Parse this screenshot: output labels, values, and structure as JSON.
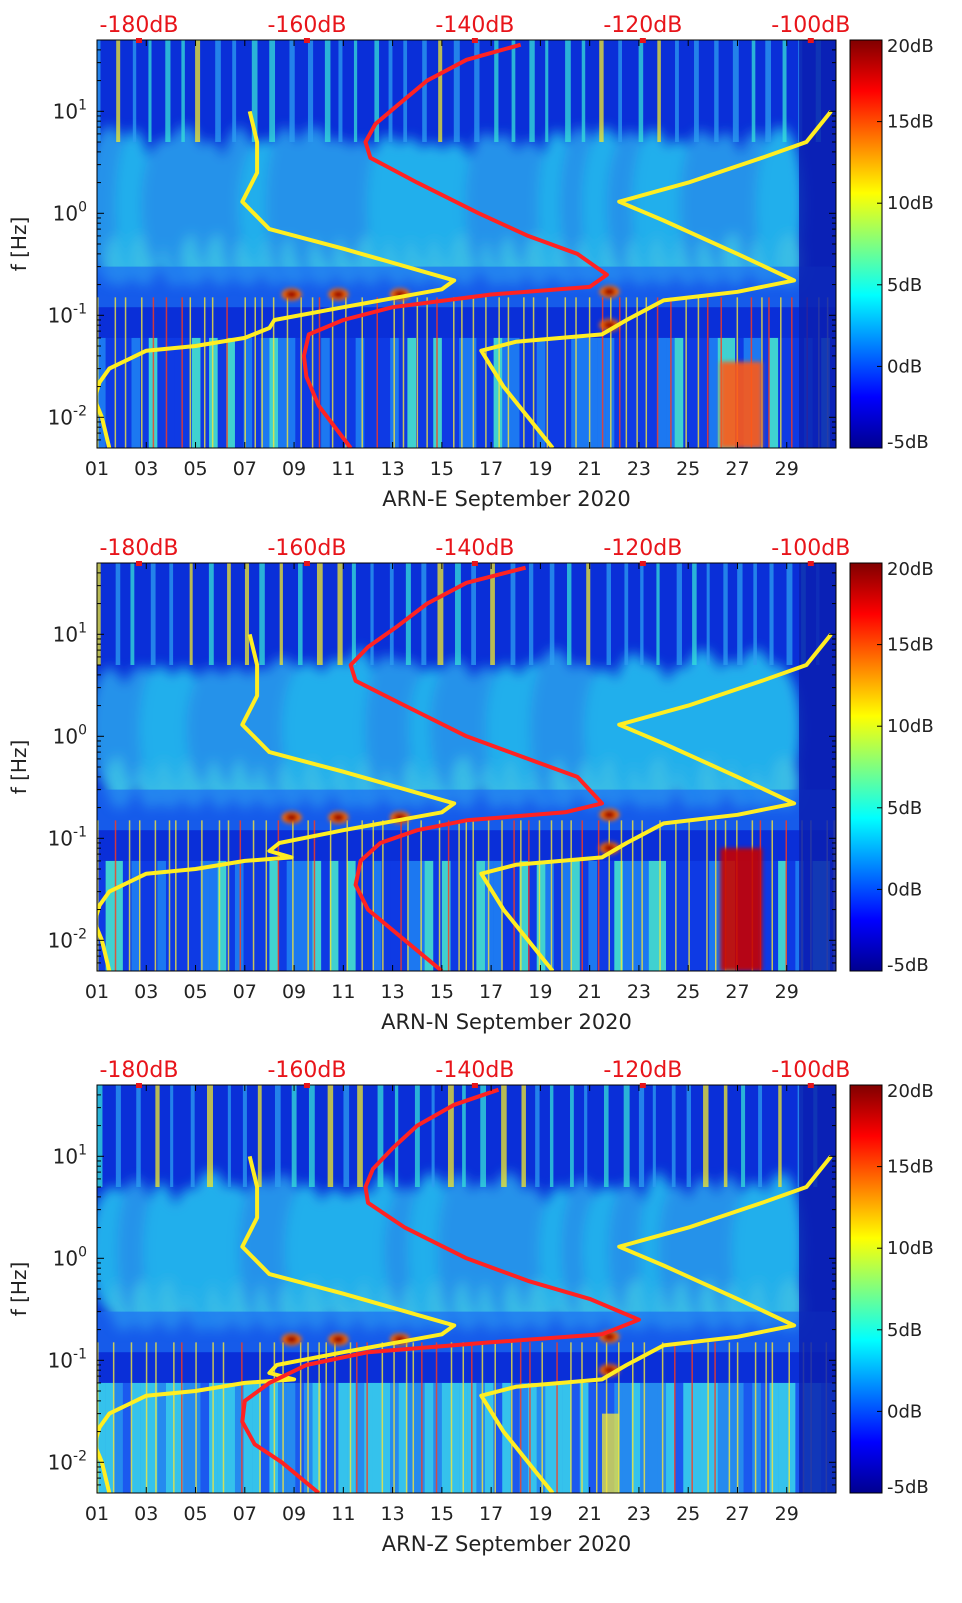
{
  "figure": {
    "panels": [
      {
        "xlabel": "ARN-E September 2020"
      },
      {
        "xlabel": "ARN-N September 2020"
      },
      {
        "xlabel": "ARN-Z September 2020"
      }
    ]
  },
  "chart_data": [
    {
      "type": "heatmap",
      "xlabel": "ARN-E September 2020",
      "ylabel": "f [Hz]",
      "xlim": [
        1,
        31
      ],
      "ylim": [
        0.005,
        50
      ],
      "yscale": "log",
      "x_ticks": [
        "01",
        "03",
        "05",
        "07",
        "09",
        "11",
        "13",
        "15",
        "17",
        "19",
        "21",
        "23",
        "25",
        "27",
        "29"
      ],
      "y_ticks": [
        "10^-2",
        "10^-1",
        "10^0",
        "10^1"
      ],
      "top_axis_ticks": [
        "-180dB",
        "-160dB",
        "-140dB",
        "-120dB",
        "-100dB"
      ],
      "top_axis_range_db": [
        -185,
        -97
      ],
      "colorbar": {
        "range_db": [
          -5,
          20
        ],
        "ticks": [
          "20dB",
          "15dB",
          "10dB",
          "5dB",
          "0dB",
          "-5dB"
        ],
        "colormap": "jet"
      },
      "series": [
        {
          "color": "#ffee22",
          "points": [
            [
              7.2,
              10
            ],
            [
              7.5,
              5
            ],
            [
              7.5,
              2.5
            ],
            [
              6.9,
              1.3
            ],
            [
              8.0,
              0.7
            ],
            [
              11,
              0.45
            ],
            [
              15.5,
              0.22
            ],
            [
              15,
              0.18
            ],
            [
              11,
              0.12
            ],
            [
              8.2,
              0.09
            ],
            [
              8,
              0.075
            ],
            [
              7.0,
              0.06
            ],
            [
              5,
              0.05
            ],
            [
              3,
              0.045
            ],
            [
              1.5,
              0.03
            ],
            [
              1.1,
              0.022
            ],
            [
              0.9,
              0.015
            ],
            [
              1.2,
              0.01
            ],
            [
              1.5,
              0.005
            ]
          ]
        },
        {
          "color": "#ff2222",
          "points": [
            [
              18.2,
              45
            ],
            [
              16,
              32
            ],
            [
              14.4,
              20
            ],
            [
              13.3,
              12
            ],
            [
              12.3,
              7.5
            ],
            [
              11.9,
              5
            ],
            [
              12.1,
              3.5
            ],
            [
              14,
              2
            ],
            [
              16.5,
              1
            ],
            [
              18.5,
              0.6
            ],
            [
              20.5,
              0.4
            ],
            [
              21.7,
              0.25
            ],
            [
              21,
              0.19
            ],
            [
              17,
              0.16
            ],
            [
              13,
              0.12
            ],
            [
              11,
              0.09
            ],
            [
              9.6,
              0.065
            ],
            [
              9.4,
              0.04
            ],
            [
              9.5,
              0.025
            ],
            [
              10,
              0.013
            ],
            [
              11.3,
              0.005
            ]
          ]
        },
        {
          "color": "#ffee22",
          "points": [
            [
              30.8,
              10
            ],
            [
              29.8,
              5
            ],
            [
              28,
              3.5
            ],
            [
              25,
              2
            ],
            [
              22.2,
              1.3
            ],
            [
              24,
              0.85
            ],
            [
              27,
              0.4
            ],
            [
              29.3,
              0.22
            ],
            [
              27,
              0.17
            ],
            [
              24,
              0.14
            ],
            [
              22.5,
              0.09
            ],
            [
              21.5,
              0.065
            ],
            [
              18,
              0.055
            ],
            [
              16.6,
              0.045
            ],
            [
              17.5,
              0.02
            ],
            [
              18.5,
              0.01
            ],
            [
              19.5,
              0.005
            ]
          ]
        }
      ]
    },
    {
      "type": "heatmap",
      "xlabel": "ARN-N September 2020",
      "ylabel": "f [Hz]",
      "xlim": [
        1,
        31
      ],
      "ylim": [
        0.005,
        50
      ],
      "yscale": "log",
      "x_ticks": [
        "01",
        "03",
        "05",
        "07",
        "09",
        "11",
        "13",
        "15",
        "17",
        "19",
        "21",
        "23",
        "25",
        "27",
        "29"
      ],
      "y_ticks": [
        "10^-2",
        "10^-1",
        "10^0",
        "10^1"
      ],
      "top_axis_ticks": [
        "-180dB",
        "-160dB",
        "-140dB",
        "-120dB",
        "-100dB"
      ],
      "top_axis_range_db": [
        -185,
        -97
      ],
      "colorbar": {
        "range_db": [
          -5,
          20
        ],
        "ticks": [
          "20dB",
          "15dB",
          "10dB",
          "5dB",
          "0dB",
          "-5dB"
        ],
        "colormap": "jet"
      },
      "series": [
        {
          "color": "#ffee22",
          "points": [
            [
              7.2,
              10
            ],
            [
              7.5,
              5
            ],
            [
              7.5,
              2.5
            ],
            [
              6.9,
              1.3
            ],
            [
              8.0,
              0.7
            ],
            [
              11,
              0.45
            ],
            [
              15.5,
              0.22
            ],
            [
              15,
              0.18
            ],
            [
              11,
              0.12
            ],
            [
              8.4,
              0.09
            ],
            [
              8,
              0.075
            ],
            [
              8.9,
              0.065
            ],
            [
              7,
              0.06
            ],
            [
              5,
              0.05
            ],
            [
              3,
              0.045
            ],
            [
              1.5,
              0.03
            ],
            [
              1.1,
              0.022
            ],
            [
              0.9,
              0.015
            ],
            [
              1.2,
              0.01
            ],
            [
              1.5,
              0.005
            ]
          ]
        },
        {
          "color": "#ff2222",
          "points": [
            [
              18.4,
              45
            ],
            [
              16,
              32
            ],
            [
              14.4,
              20
            ],
            [
              13.2,
              12
            ],
            [
              12,
              7.5
            ],
            [
              11.3,
              5
            ],
            [
              11.5,
              3.5
            ],
            [
              13.5,
              2
            ],
            [
              16,
              1
            ],
            [
              18.5,
              0.6
            ],
            [
              20.5,
              0.4
            ],
            [
              21.5,
              0.22
            ],
            [
              20,
              0.18
            ],
            [
              16,
              0.15
            ],
            [
              14,
              0.12
            ],
            [
              12.5,
              0.09
            ],
            [
              11.7,
              0.06
            ],
            [
              11.5,
              0.035
            ],
            [
              12,
              0.02
            ],
            [
              13.5,
              0.01
            ],
            [
              15,
              0.005
            ]
          ]
        },
        {
          "color": "#ffee22",
          "points": [
            [
              30.8,
              10
            ],
            [
              29.8,
              5
            ],
            [
              28,
              3.5
            ],
            [
              25,
              2
            ],
            [
              22.2,
              1.3
            ],
            [
              24,
              0.85
            ],
            [
              27,
              0.4
            ],
            [
              29.3,
              0.22
            ],
            [
              27,
              0.17
            ],
            [
              24,
              0.14
            ],
            [
              22.5,
              0.09
            ],
            [
              21.5,
              0.065
            ],
            [
              18,
              0.055
            ],
            [
              16.6,
              0.045
            ],
            [
              17.5,
              0.02
            ],
            [
              18.5,
              0.01
            ],
            [
              19.5,
              0.005
            ]
          ]
        }
      ]
    },
    {
      "type": "heatmap",
      "xlabel": "ARN-Z September 2020",
      "ylabel": "f [Hz]",
      "xlim": [
        1,
        31
      ],
      "ylim": [
        0.005,
        50
      ],
      "yscale": "log",
      "x_ticks": [
        "01",
        "03",
        "05",
        "07",
        "09",
        "11",
        "13",
        "15",
        "17",
        "19",
        "21",
        "23",
        "25",
        "27",
        "29"
      ],
      "y_ticks": [
        "10^-2",
        "10^-1",
        "10^0",
        "10^1"
      ],
      "top_axis_ticks": [
        "-180dB",
        "-160dB",
        "-140dB",
        "-120dB",
        "-100dB"
      ],
      "top_axis_range_db": [
        -185,
        -97
      ],
      "colorbar": {
        "range_db": [
          -5,
          20
        ],
        "ticks": [
          "20dB",
          "15dB",
          "10dB",
          "5dB",
          "0dB",
          "-5dB"
        ],
        "colormap": "jet"
      },
      "series": [
        {
          "color": "#ffee22",
          "points": [
            [
              7.2,
              10
            ],
            [
              7.5,
              5
            ],
            [
              7.5,
              2.5
            ],
            [
              6.9,
              1.3
            ],
            [
              8.0,
              0.7
            ],
            [
              11,
              0.45
            ],
            [
              15.5,
              0.22
            ],
            [
              15,
              0.18
            ],
            [
              11,
              0.12
            ],
            [
              8.3,
              0.09
            ],
            [
              8,
              0.075
            ],
            [
              9,
              0.065
            ],
            [
              7,
              0.06
            ],
            [
              5,
              0.05
            ],
            [
              3,
              0.045
            ],
            [
              1.5,
              0.03
            ],
            [
              1.1,
              0.022
            ],
            [
              0.9,
              0.015
            ],
            [
              1.2,
              0.01
            ],
            [
              1.5,
              0.005
            ]
          ]
        },
        {
          "color": "#ff2222",
          "points": [
            [
              17.3,
              45
            ],
            [
              15.5,
              32
            ],
            [
              14,
              20
            ],
            [
              13,
              12
            ],
            [
              12.2,
              7.5
            ],
            [
              11.9,
              5
            ],
            [
              12,
              3.5
            ],
            [
              13.5,
              2
            ],
            [
              16,
              1
            ],
            [
              18.5,
              0.6
            ],
            [
              21,
              0.4
            ],
            [
              23,
              0.25
            ],
            [
              21.5,
              0.18
            ],
            [
              17,
              0.15
            ],
            [
              12,
              0.12
            ],
            [
              9.5,
              0.09
            ],
            [
              8,
              0.06
            ],
            [
              7,
              0.04
            ],
            [
              6.9,
              0.025
            ],
            [
              7.4,
              0.015
            ],
            [
              8.5,
              0.01
            ],
            [
              10,
              0.005
            ]
          ]
        },
        {
          "color": "#ffee22",
          "points": [
            [
              30.8,
              10
            ],
            [
              29.8,
              5
            ],
            [
              28,
              3.5
            ],
            [
              25,
              2
            ],
            [
              22.2,
              1.3
            ],
            [
              24,
              0.85
            ],
            [
              27,
              0.4
            ],
            [
              29.3,
              0.22
            ],
            [
              27,
              0.17
            ],
            [
              24,
              0.14
            ],
            [
              22.5,
              0.09
            ],
            [
              21.5,
              0.065
            ],
            [
              18,
              0.055
            ],
            [
              16.6,
              0.045
            ],
            [
              17.5,
              0.02
            ],
            [
              18.5,
              0.01
            ],
            [
              19.5,
              0.005
            ]
          ]
        }
      ]
    }
  ]
}
